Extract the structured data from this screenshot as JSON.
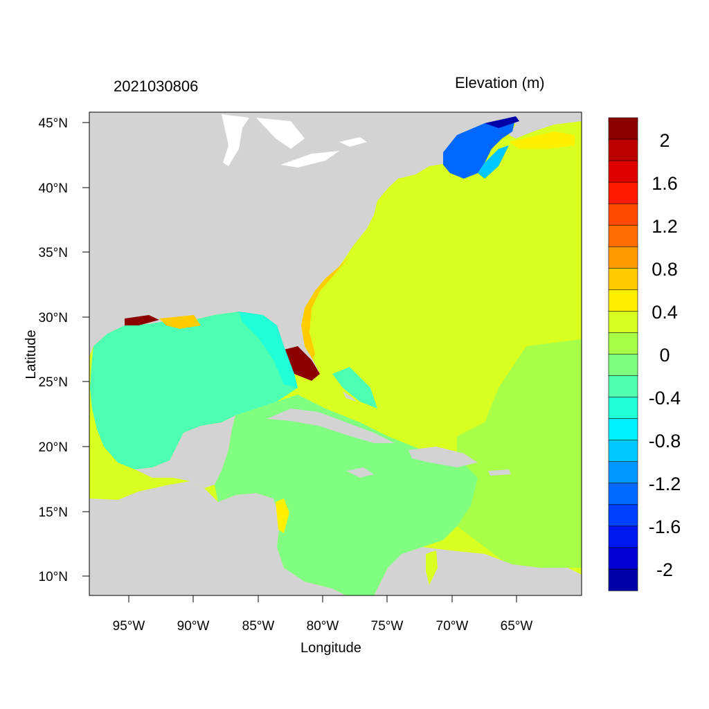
{
  "header": {
    "timestamp": "2021030806",
    "variable": "Elevation (m)"
  },
  "axes": {
    "xlabel": "Longitude",
    "ylabel": "Latitude",
    "lon_ticks": [
      "95°W",
      "90°W",
      "85°W",
      "80°W",
      "75°W",
      "70°W",
      "65°W"
    ],
    "lat_ticks": [
      "45°N",
      "40°N",
      "35°N",
      "30°N",
      "25°N",
      "20°N",
      "15°N",
      "10°N"
    ]
  },
  "colorbar": {
    "labels": [
      "2",
      "1.6",
      "1.2",
      "0.8",
      "0.4",
      "0",
      "-0.4",
      "-0.8",
      "-1.2",
      "-1.6",
      "-2"
    ],
    "colors": [
      "#8b0000",
      "#bb0000",
      "#e00000",
      "#ff1a00",
      "#ff4800",
      "#ff6e00",
      "#ff9a00",
      "#ffcc00",
      "#fff000",
      "#d9ff20",
      "#a8ff48",
      "#80ff80",
      "#50ffb0",
      "#20ffd8",
      "#00f0ff",
      "#00c8ff",
      "#0098ff",
      "#0068ff",
      "#0040ff",
      "#0018f0",
      "#0000d0",
      "#0000a8"
    ]
  },
  "map_colors": {
    "land": "#d3d3d3",
    "water": "#ffffff",
    "gulf": "#4cffb2",
    "caribbean": "#80ff80",
    "atlantic": "#d9ff20",
    "gulf_of_maine": "#0068ff",
    "surge_high": "#8b0000"
  }
}
